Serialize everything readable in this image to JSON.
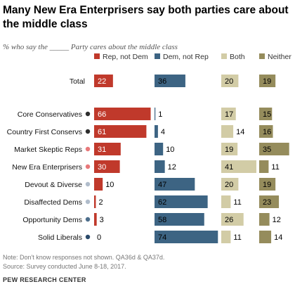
{
  "title": "Many New Era Enterprisers say both parties care about the middle class",
  "subtitle": "% who say the _____ Party cares about the middle class",
  "note": "Note: Don't know responses not shown. QA36d & QA37d.",
  "source": "Source: Survey conducted June 8-18, 2017.",
  "credit": "PEW RESEARCH CENTER",
  "chart_data": {
    "type": "bar",
    "layout": "grouped-horizontal-columns",
    "categories": [
      "Total",
      "Core Conservatives",
      "Country First Conservs",
      "Market Skeptic Reps",
      "New Era Enterprisers",
      "Devout & Diverse",
      "Disaffected Dems",
      "Opportunity Dems",
      "Solid Liberals"
    ],
    "category_dot_colors": [
      "",
      "#2d2d2d",
      "#2d2d2d",
      "#e8787a",
      "#e8787a",
      "#b0bccb",
      "#b0bccb",
      "#4d6e8c",
      "#2a4a6a"
    ],
    "series": [
      {
        "name": "Rep, not Dem",
        "color": "#c0392b",
        "values": [
          22,
          66,
          61,
          31,
          30,
          10,
          2,
          3,
          0
        ]
      },
      {
        "name": "Dem, not Rep",
        "color": "#3d6483",
        "values": [
          36,
          1,
          4,
          10,
          12,
          47,
          62,
          58,
          74
        ]
      },
      {
        "name": "Both",
        "color": "#d2cca6",
        "values": [
          20,
          17,
          14,
          19,
          41,
          20,
          11,
          26,
          11
        ]
      },
      {
        "name": "Neither",
        "color": "#958c5c",
        "values": [
          19,
          15,
          16,
          35,
          11,
          19,
          23,
          12,
          14
        ]
      }
    ],
    "label_colors": [
      "#ffffff",
      "#000000",
      "#000000",
      "#000000"
    ],
    "xlim": [
      0,
      100
    ],
    "grid": false,
    "legend": "top"
  }
}
